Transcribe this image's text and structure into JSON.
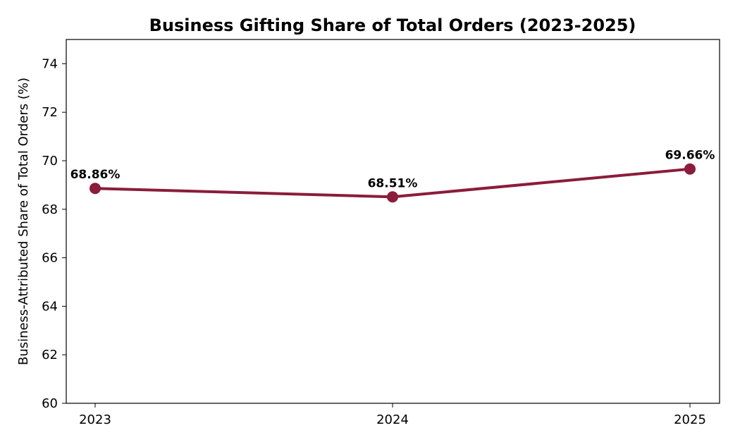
{
  "chart_data": {
    "type": "line",
    "title": "Business Gifting Share of Total Orders (2023-2025)",
    "xlabel": "",
    "ylabel": "Business-Attributed Share of Total Orders (%)",
    "categories": [
      "2023",
      "2024",
      "2025"
    ],
    "series": [
      {
        "values": [
          68.86,
          68.51,
          69.66
        ],
        "color": "#8b1c3b"
      }
    ],
    "data_labels": [
      "68.86%",
      "68.51%",
      "69.66%"
    ],
    "ylim": [
      60,
      75
    ],
    "yticks": [
      60,
      62,
      64,
      66,
      68,
      70,
      72,
      74
    ],
    "grid": false,
    "legend": "none"
  }
}
